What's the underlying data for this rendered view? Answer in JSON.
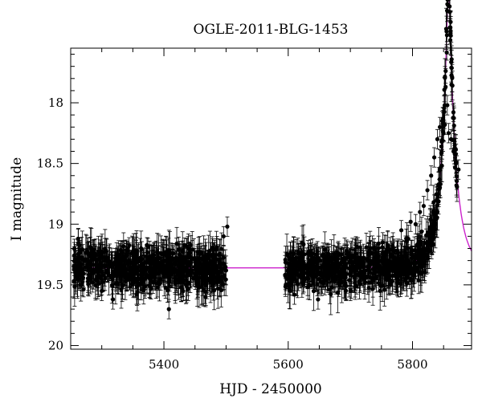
{
  "chart_data": {
    "type": "scatter",
    "title": "OGLE-2011-BLG-1453",
    "xlabel": "HJD - 2450000",
    "ylabel": "I magnitude",
    "xlim": [
      5250,
      5895
    ],
    "ylim": [
      20.03,
      17.55
    ],
    "y_inverted": true,
    "x_ticks": [
      5400,
      5600,
      5800
    ],
    "y_ticks": [
      18,
      18.5,
      19,
      19.5,
      20
    ],
    "y_tick_labels": [
      "18",
      "18.5",
      "19",
      "19.5",
      "20"
    ],
    "grid": false,
    "colors": {
      "points": "#000000",
      "model": "#cc22cc"
    },
    "series": [
      {
        "kind": "observations",
        "x": [
          5262,
          5263,
          5270,
          5278,
          5285,
          5290,
          5296,
          5300,
          5305,
          5310,
          5318,
          5322,
          5328,
          5333,
          5340,
          5345,
          5350,
          5356,
          5362,
          5368,
          5372,
          5378,
          5385,
          5390,
          5396,
          5402,
          5408,
          5414,
          5420,
          5425,
          5431,
          5437,
          5443,
          5449,
          5455,
          5461,
          5467,
          5473,
          5479,
          5485,
          5490,
          5496,
          5502,
          5598,
          5603,
          5610,
          5618,
          5625,
          5632,
          5640,
          5648,
          5655,
          5662,
          5670,
          5678,
          5685,
          5692,
          5700,
          5708,
          5715,
          5722,
          5730,
          5738,
          5745,
          5752,
          5760,
          5768,
          5775,
          5782,
          5790,
          5797,
          5805,
          5812,
          5818,
          5824,
          5830,
          5835,
          5840,
          5844,
          5848,
          5852,
          5856,
          5858,
          5862,
          5866,
          5870,
          5874
        ],
        "y": [
          19.12,
          19.45,
          19.38,
          19.33,
          19.48,
          19.25,
          19.42,
          19.55,
          19.3,
          19.4,
          19.62,
          19.28,
          19.35,
          19.5,
          19.22,
          19.44,
          19.38,
          19.58,
          19.3,
          19.41,
          19.27,
          19.46,
          19.36,
          19.52,
          19.33,
          19.4,
          19.7,
          19.24,
          19.45,
          19.35,
          19.55,
          19.31,
          19.42,
          19.28,
          19.48,
          19.37,
          19.6,
          19.34,
          19.44,
          19.2,
          19.39,
          19.1,
          19.02,
          19.45,
          19.35,
          19.58,
          19.28,
          19.48,
          19.33,
          19.42,
          19.62,
          19.26,
          19.4,
          19.52,
          19.3,
          19.44,
          19.36,
          19.55,
          19.25,
          19.4,
          19.32,
          19.48,
          19.2,
          19.35,
          19.15,
          19.3,
          19.18,
          19.22,
          19.05,
          19.12,
          18.98,
          19.0,
          18.9,
          18.85,
          18.72,
          18.6,
          18.45,
          18.3,
          18.2,
          18.15,
          18.18,
          18.02,
          18.25,
          18.3,
          18.4,
          18.5,
          18.55
        ],
        "density": "dense cloud of points with error bars over both observing seasons (approx. 5255-5505 and 5595-5875)"
      },
      {
        "kind": "model",
        "t0": 5858,
        "tE": 25,
        "u0": 0.12,
        "base_magnitude": 19.36,
        "x_range": [
          5255,
          5895
        ]
      }
    ]
  }
}
